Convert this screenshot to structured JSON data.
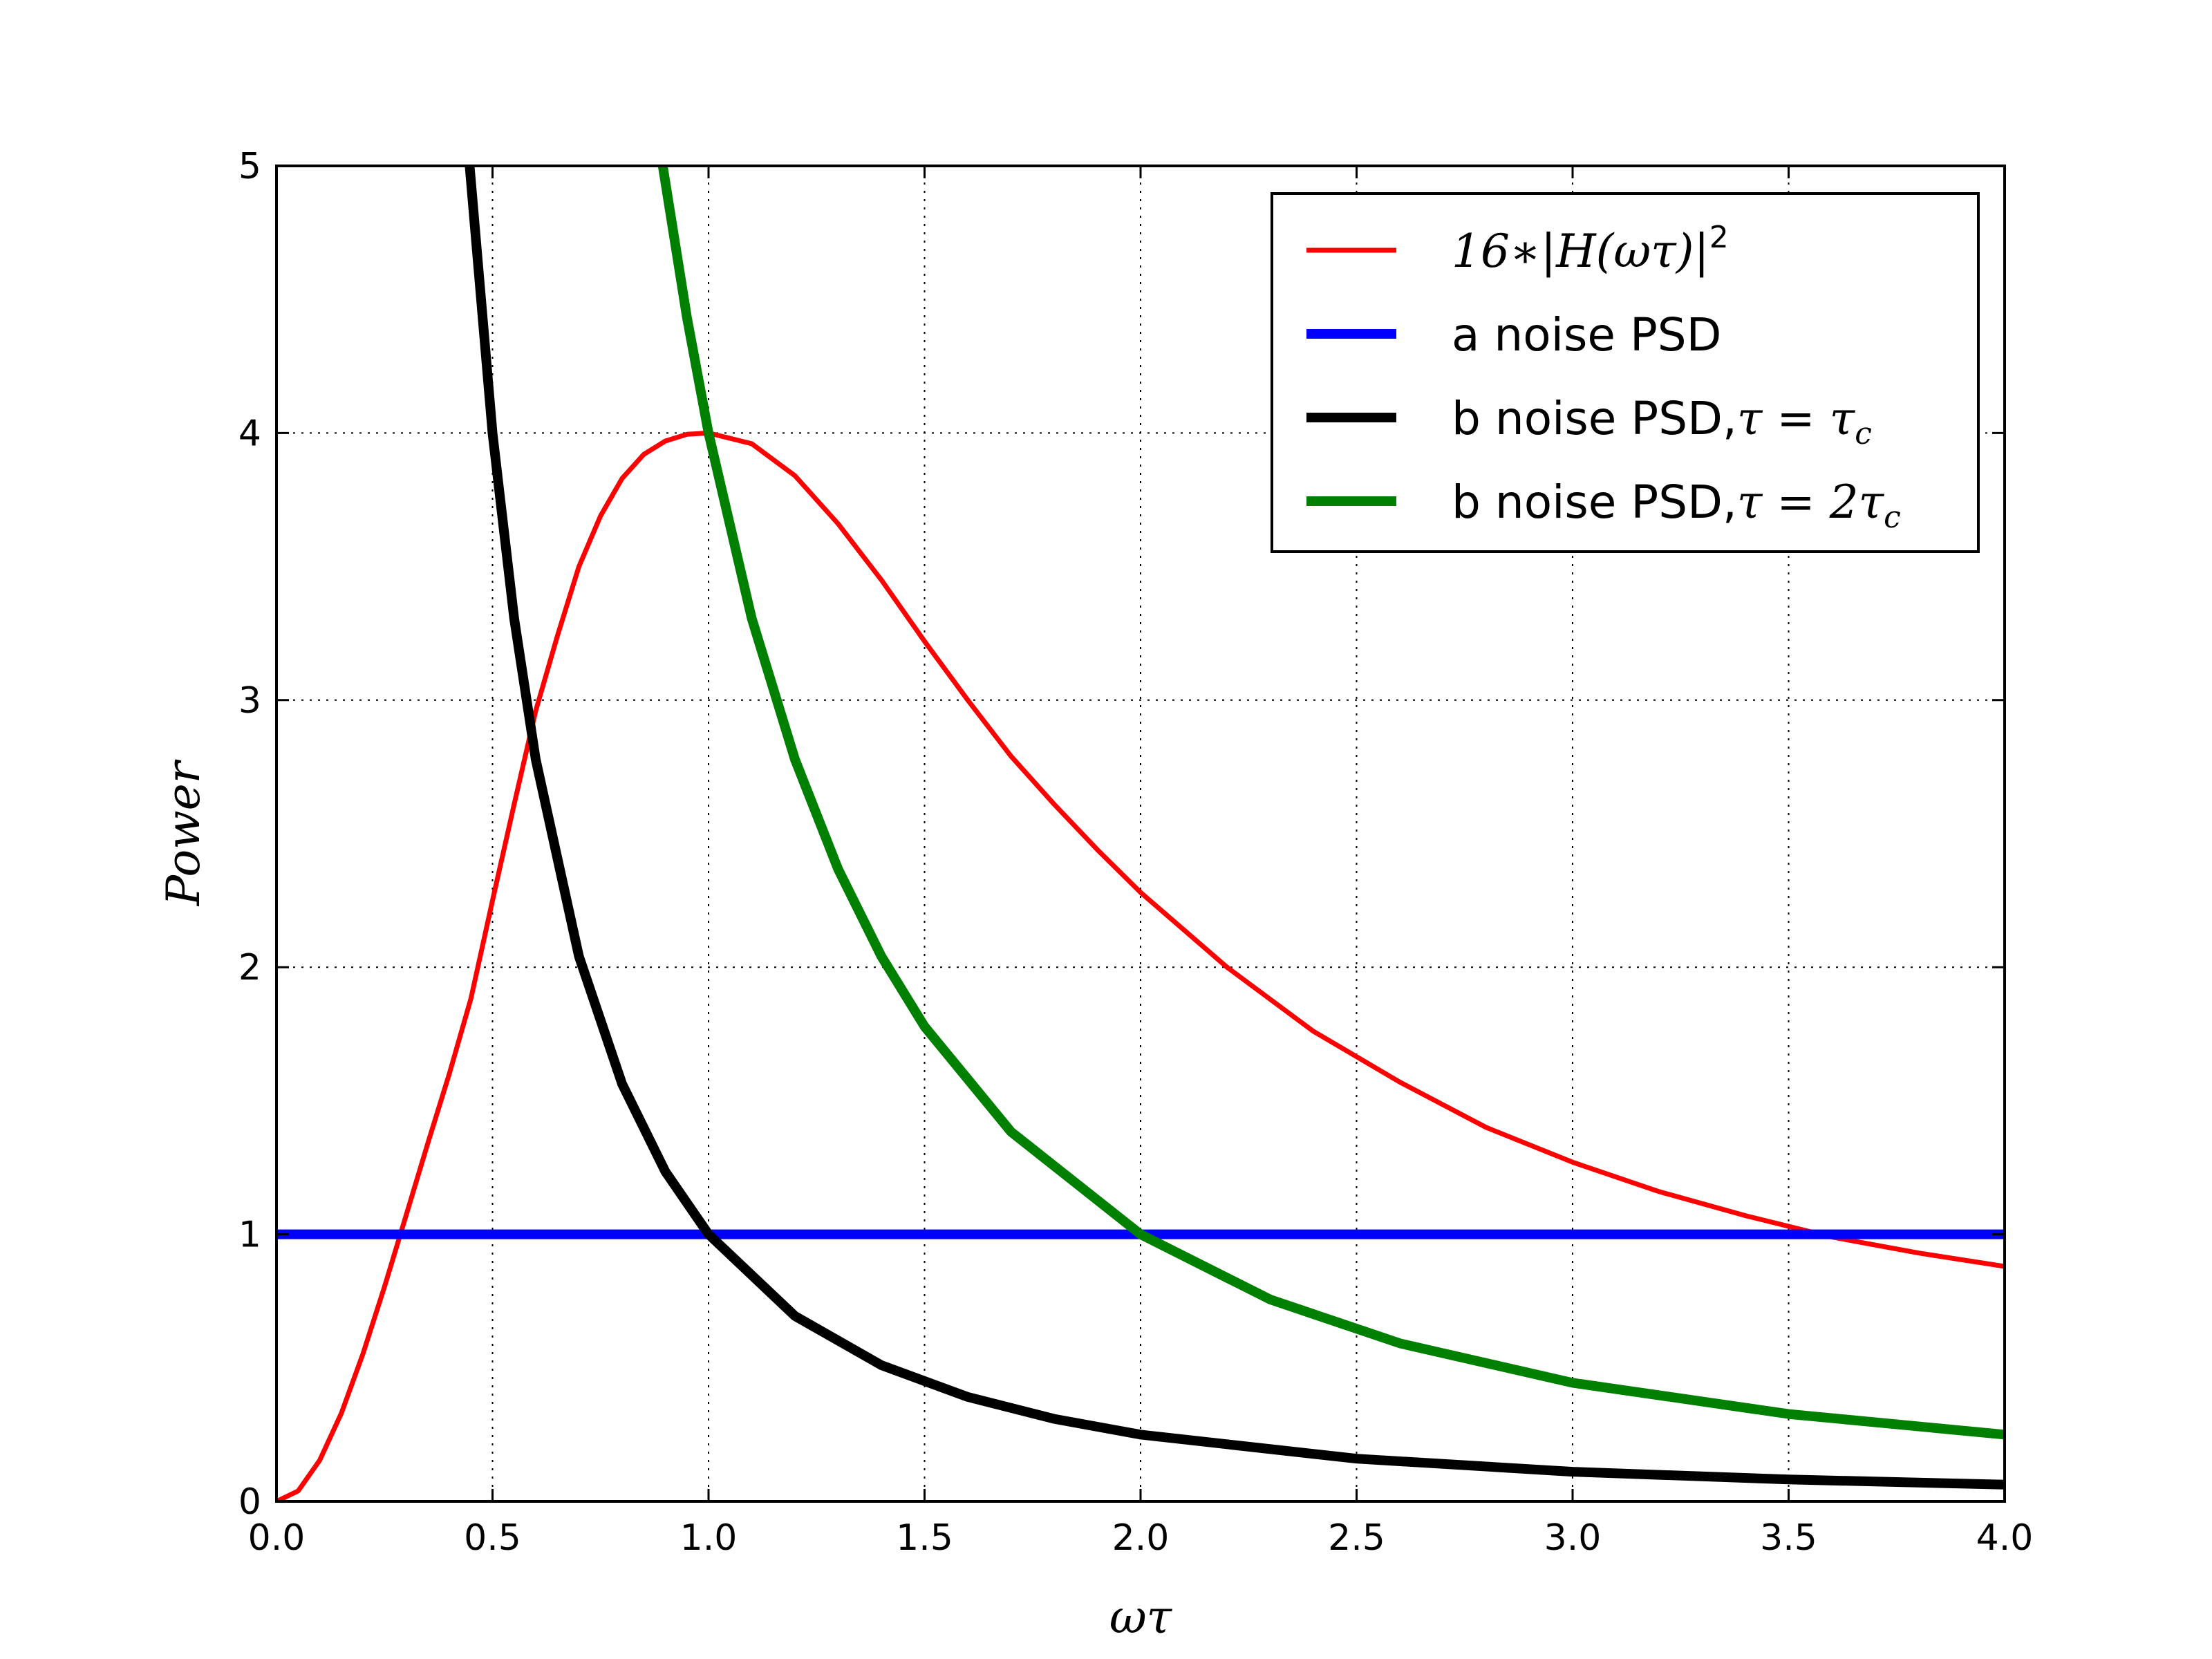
{
  "chart_data": {
    "type": "line",
    "title": "",
    "xlabel": "ωτ",
    "ylabel": "Power",
    "xlim": [
      0.0,
      4.0
    ],
    "ylim": [
      0,
      5
    ],
    "xticks": [
      "0.0",
      "0.5",
      "1.0",
      "1.5",
      "2.0",
      "2.5",
      "3.0",
      "3.5",
      "4.0"
    ],
    "yticks": [
      "0",
      "1",
      "2",
      "3",
      "4",
      "5"
    ],
    "grid": true,
    "legend_position": "top-right",
    "series": [
      {
        "name": "16∗|H(ωτ)|²",
        "color": "#ff0000",
        "x": [
          0.0,
          0.05,
          0.1,
          0.15,
          0.2,
          0.25,
          0.3,
          0.35,
          0.4,
          0.45,
          0.5,
          0.55,
          0.6,
          0.65,
          0.7,
          0.75,
          0.8,
          0.85,
          0.9,
          0.95,
          1.0,
          1.1,
          1.2,
          1.3,
          1.4,
          1.5,
          1.6,
          1.7,
          1.8,
          1.9,
          2.0,
          2.2,
          2.4,
          2.6,
          2.8,
          3.0,
          3.2,
          3.4,
          3.6,
          3.8,
          4.0
        ],
        "y": [
          0.0,
          0.039,
          0.154,
          0.33,
          0.552,
          0.804,
          1.071,
          1.34,
          1.601,
          1.883,
          2.25,
          2.61,
          2.96,
          3.24,
          3.5,
          3.69,
          3.83,
          3.92,
          3.97,
          3.995,
          4.0,
          3.96,
          3.84,
          3.66,
          3.45,
          3.22,
          3.0,
          2.79,
          2.61,
          2.44,
          2.28,
          2.0,
          1.76,
          1.57,
          1.4,
          1.27,
          1.16,
          1.07,
          0.99,
          0.93,
          0.88
        ]
      },
      {
        "name": "a noise PSD",
        "color": "#0000ff",
        "x": [
          0.0,
          4.0
        ],
        "y": [
          1.0,
          1.0
        ]
      },
      {
        "name": "b noise PSD,τ=τ_c",
        "color": "#000000",
        "x": [
          0.447,
          0.5,
          0.55,
          0.6,
          0.7,
          0.8,
          0.9,
          1.0,
          1.2,
          1.4,
          1.6,
          1.8,
          2.0,
          2.5,
          3.0,
          3.5,
          4.0
        ],
        "y": [
          5.0,
          4.0,
          3.306,
          2.778,
          2.041,
          1.563,
          1.235,
          1.0,
          0.694,
          0.51,
          0.391,
          0.309,
          0.25,
          0.16,
          0.111,
          0.082,
          0.063
        ]
      },
      {
        "name": "b noise PSD,τ=2τ_c",
        "color": "#008000",
        "x": [
          0.894,
          0.95,
          1.0,
          1.1,
          1.2,
          1.3,
          1.4,
          1.5,
          1.7,
          2.0,
          2.3,
          2.6,
          3.0,
          3.5,
          4.0
        ],
        "y": [
          5.0,
          4.432,
          4.0,
          3.306,
          2.778,
          2.367,
          2.041,
          1.778,
          1.384,
          1.0,
          0.756,
          0.592,
          0.444,
          0.327,
          0.25
        ]
      }
    ]
  }
}
